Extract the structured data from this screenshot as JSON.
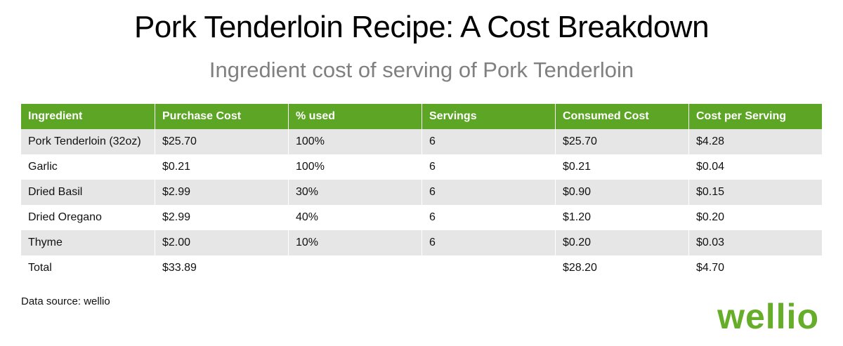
{
  "title": "Pork Tenderloin Recipe: A Cost Breakdown",
  "subtitle": "Ingredient cost of serving of Pork Tenderloin",
  "table": {
    "headers": [
      "Ingredient",
      "Purchase Cost",
      "% used",
      "Servings",
      "Consumed Cost",
      "Cost per Serving"
    ],
    "rows": [
      [
        "Pork Tenderloin (32oz)",
        "$25.70",
        "100%",
        "6",
        "$25.70",
        "$4.28"
      ],
      [
        "Garlic",
        "$0.21",
        "100%",
        "6",
        "$0.21",
        "$0.04"
      ],
      [
        "Dried Basil",
        "$2.99",
        "30%",
        "6",
        "$0.90",
        "$0.15"
      ],
      [
        "Dried Oregano",
        "$2.99",
        "40%",
        "6",
        "$1.20",
        "$0.20"
      ],
      [
        "Thyme",
        "$2.00",
        "10%",
        "6",
        "$0.20",
        "$0.03"
      ],
      [
        "Total",
        "$33.89",
        "",
        "",
        "$28.20",
        "$4.70"
      ]
    ]
  },
  "source": "Data source: wellio",
  "logo": "wellio",
  "colors": {
    "header_green": "#5da524",
    "logo_green": "#66ad2a",
    "stripe_gray": "#e6e6e6",
    "subtitle_gray": "#808080"
  }
}
